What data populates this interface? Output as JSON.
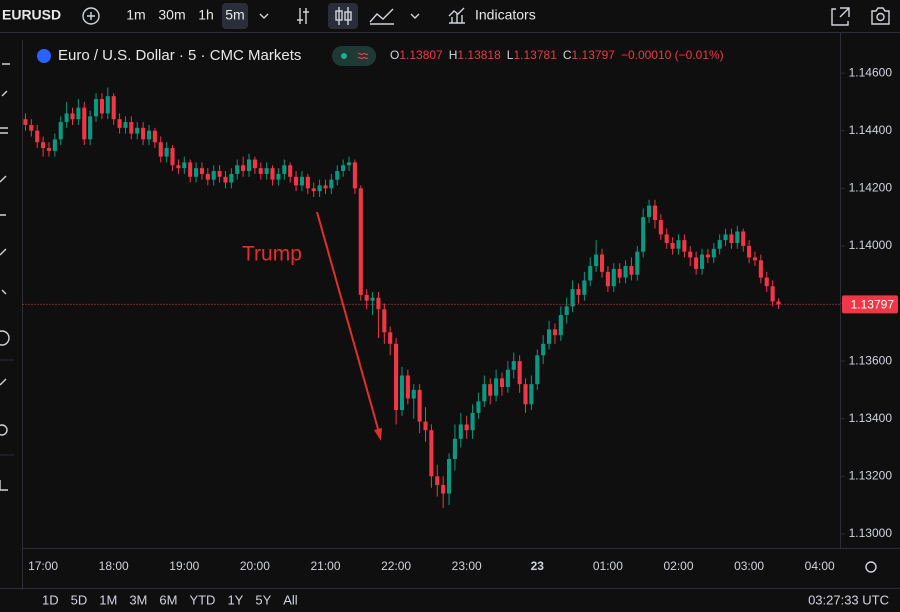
{
  "toolbar": {
    "symbol": "EURUSD",
    "intervals": [
      "1m",
      "30m",
      "1h",
      "5m"
    ],
    "indicators": "Indicators"
  },
  "chart_data": {
    "type": "candlestick",
    "title": "Euro / U.S. Dollar · 5 · CMC Markets",
    "ohlc_labels": [
      "O",
      "H",
      "L",
      "C"
    ],
    "change": "−0.00010 (−0.01%)",
    "annotation": "Trump",
    "up_color": "#089981",
    "down_color": "#f23645",
    "grid": false,
    "categories": [
      null,
      null,
      null,
      "17:00",
      null,
      null,
      null,
      null,
      null,
      null,
      null,
      null,
      null,
      null,
      null,
      "18:00",
      null,
      null,
      null,
      null,
      null,
      null,
      null,
      null,
      null,
      null,
      null,
      "19:00",
      null,
      null,
      null,
      null,
      null,
      null,
      null,
      null,
      null,
      null,
      null,
      "20:00",
      null,
      null,
      null,
      null,
      null,
      null,
      null,
      null,
      null,
      null,
      null,
      "21:00",
      null,
      null,
      null,
      null,
      null,
      null,
      null,
      null,
      null,
      null,
      null,
      "22:00",
      null,
      null,
      null,
      null,
      null,
      null,
      null,
      null,
      null,
      null,
      null,
      "23:00",
      null,
      null,
      null,
      null,
      null,
      null,
      null,
      null,
      null,
      null,
      null,
      "23",
      null,
      null,
      null,
      null,
      null,
      null,
      null,
      null,
      null,
      null,
      null,
      "01:00",
      null,
      null,
      null,
      null,
      null,
      null,
      null,
      null,
      null,
      null,
      null,
      "02:00",
      null,
      null,
      null,
      null,
      null,
      null,
      null,
      null,
      null,
      null,
      null,
      "03:00",
      null,
      null,
      null,
      null,
      null,
      null,
      null,
      null,
      null,
      null,
      null,
      "04:00",
      null,
      null
    ],
    "open": [
      1.1444,
      1.1442,
      1.144,
      1.1436,
      1.1434,
      1.1433,
      1.1437,
      1.1443,
      1.1446,
      1.1444,
      1.1448,
      1.1437,
      1.1445,
      1.1451,
      1.1446,
      1.1452,
      1.1444,
      1.1441,
      1.1443,
      1.1439,
      1.1441,
      1.1437,
      1.144,
      1.1436,
      1.1431,
      1.1434,
      1.1428,
      1.1427,
      1.1429,
      1.1424,
      1.1427,
      1.1425,
      1.1423,
      1.1426,
      1.1424,
      1.1422,
      1.1425,
      1.1428,
      1.1426,
      1.143,
      1.1427,
      1.1425,
      1.1427,
      1.1423,
      1.1425,
      1.1428,
      1.1424,
      1.1421,
      1.1424,
      1.142,
      1.1419,
      1.1421,
      1.142,
      1.1423,
      1.1426,
      1.1428,
      1.1429,
      1.142,
      1.1383,
      1.1381,
      1.1382,
      1.1378,
      1.137,
      1.1366,
      1.1343,
      1.1355,
      1.1347,
      1.135,
      1.1339,
      1.1336,
      1.132,
      1.1317,
      1.1314,
      1.1326,
      1.1333,
      1.1338,
      1.1336,
      1.1342,
      1.1346,
      1.1352,
      1.1348,
      1.1354,
      1.1351,
      1.1357,
      1.136,
      1.1352,
      1.1345,
      1.1352,
      1.1362,
      1.1366,
      1.1371,
      1.1369,
      1.1376,
      1.1379,
      1.1385,
      1.1383,
      1.1388,
      1.1393,
      1.1397,
      1.1391,
      1.1386,
      1.1392,
      1.1389,
      1.1393,
      1.139,
      1.1398,
      1.141,
      1.1414,
      1.1409,
      1.1404,
      1.1401,
      1.1399,
      1.1402,
      1.1398,
      1.1396,
      1.1392,
      1.1397,
      1.1396,
      1.1399,
      1.1402,
      1.1404,
      1.1401,
      1.1405,
      1.14,
      1.1396,
      1.1395,
      1.1389,
      1.1386,
      1.13807,
      null,
      null,
      null,
      null,
      null,
      null,
      null,
      null,
      null
    ],
    "high": [
      1.1446,
      1.1444,
      1.1442,
      1.1438,
      1.1436,
      1.1439,
      1.1445,
      1.145,
      1.1448,
      1.1451,
      1.145,
      1.1447,
      1.1453,
      1.1453,
      1.1455,
      1.1453,
      1.1446,
      1.1445,
      1.1445,
      1.1443,
      1.1443,
      1.1442,
      1.1441,
      1.1438,
      1.1436,
      1.1435,
      1.143,
      1.1431,
      1.143,
      1.1429,
      1.1429,
      1.1427,
      1.1428,
      1.1428,
      1.1426,
      1.1427,
      1.143,
      1.1431,
      1.1432,
      1.1431,
      1.1429,
      1.1429,
      1.1428,
      1.1427,
      1.143,
      1.1429,
      1.1426,
      1.1426,
      1.1425,
      1.1422,
      1.1423,
      1.1423,
      1.1425,
      1.1428,
      1.143,
      1.1431,
      1.143,
      1.1421,
      1.1385,
      1.1384,
      1.1384,
      1.138,
      1.1372,
      1.1368,
      1.1358,
      1.1357,
      1.1352,
      1.1352,
      1.1344,
      1.1338,
      1.1324,
      1.132,
      1.1328,
      1.1338,
      1.1342,
      1.1341,
      1.1345,
      1.1349,
      1.1355,
      1.1354,
      1.1357,
      1.1356,
      1.136,
      1.1363,
      1.1362,
      1.1354,
      1.1355,
      1.1364,
      1.1369,
      1.1374,
      1.1373,
      1.1379,
      1.1382,
      1.1388,
      1.1387,
      1.1391,
      1.1396,
      1.1402,
      1.1399,
      1.1393,
      1.1394,
      1.1394,
      1.1395,
      1.1396,
      1.14,
      1.1413,
      1.1416,
      1.1416,
      1.1411,
      1.1406,
      1.1403,
      1.1404,
      1.1404,
      1.14,
      1.1398,
      1.1399,
      1.1399,
      1.1401,
      1.1404,
      1.1406,
      1.1406,
      1.1407,
      1.1406,
      1.1402,
      1.1398,
      1.1397,
      1.1391,
      1.1388,
      1.13818,
      null,
      null,
      null,
      null,
      null,
      null,
      null,
      null,
      null
    ],
    "low": [
      1.144,
      1.1438,
      1.1434,
      1.1431,
      1.1431,
      1.1431,
      1.1435,
      1.1441,
      1.1442,
      1.1442,
      1.1435,
      1.1435,
      1.1443,
      1.1444,
      1.1444,
      1.1442,
      1.1439,
      1.1439,
      1.1437,
      1.1437,
      1.1435,
      1.1435,
      1.1434,
      1.1429,
      1.1429,
      1.1426,
      1.1425,
      1.1425,
      1.1422,
      1.1422,
      1.1423,
      1.1421,
      1.1421,
      1.1422,
      1.142,
      1.142,
      1.1423,
      1.1424,
      1.1424,
      1.1425,
      1.1423,
      1.1423,
      1.1421,
      1.1421,
      1.1423,
      1.1422,
      1.1419,
      1.1419,
      1.1418,
      1.1417,
      1.1417,
      1.1418,
      1.1418,
      1.1421,
      1.1424,
      1.1426,
      1.1418,
      1.1381,
      1.1378,
      1.1376,
      1.1368,
      1.1366,
      1.1362,
      1.1338,
      1.1341,
      1.1345,
      1.134,
      1.1335,
      1.1332,
      1.1316,
      1.1313,
      1.1309,
      1.131,
      1.1322,
      1.133,
      1.1333,
      1.1333,
      1.134,
      1.1344,
      1.1345,
      1.1346,
      1.1348,
      1.1349,
      1.1354,
      1.1349,
      1.1342,
      1.1343,
      1.135,
      1.1359,
      1.1364,
      1.1366,
      1.1367,
      1.1373,
      1.1377,
      1.138,
      1.1381,
      1.1386,
      1.1391,
      1.1389,
      1.1384,
      1.1384,
      1.1387,
      1.1387,
      1.1388,
      1.1388,
      1.1396,
      1.1408,
      1.1406,
      1.1402,
      1.1399,
      1.1397,
      1.1397,
      1.1396,
      1.1393,
      1.139,
      1.139,
      1.1394,
      1.1394,
      1.1397,
      1.14,
      1.1399,
      1.1399,
      1.1398,
      1.1394,
      1.1393,
      1.1387,
      1.1384,
      1.1379,
      1.13781,
      null,
      null,
      null,
      null,
      null,
      null,
      null,
      null,
      null
    ],
    "close": [
      1.1442,
      1.144,
      1.1436,
      1.1434,
      1.1433,
      1.1437,
      1.1443,
      1.1446,
      1.1444,
      1.1448,
      1.1437,
      1.1445,
      1.1451,
      1.1446,
      1.1452,
      1.1444,
      1.1441,
      1.1443,
      1.1439,
      1.1441,
      1.1437,
      1.144,
      1.1436,
      1.1431,
      1.1434,
      1.1428,
      1.1427,
      1.1429,
      1.1424,
      1.1427,
      1.1425,
      1.1423,
      1.1426,
      1.1424,
      1.1422,
      1.1425,
      1.1428,
      1.1426,
      1.143,
      1.1427,
      1.1425,
      1.1427,
      1.1423,
      1.1425,
      1.1428,
      1.1424,
      1.1421,
      1.1424,
      1.142,
      1.1419,
      1.1421,
      1.142,
      1.1423,
      1.1426,
      1.1428,
      1.1429,
      1.142,
      1.1383,
      1.1381,
      1.1382,
      1.1378,
      1.137,
      1.1366,
      1.1343,
      1.1355,
      1.1347,
      1.135,
      1.1339,
      1.1336,
      1.132,
      1.1317,
      1.1314,
      1.1326,
      1.1333,
      1.1338,
      1.1336,
      1.1342,
      1.1346,
      1.1352,
      1.1348,
      1.1354,
      1.1351,
      1.1357,
      1.136,
      1.1352,
      1.1345,
      1.1352,
      1.1362,
      1.1366,
      1.1371,
      1.1369,
      1.1376,
      1.1379,
      1.1385,
      1.1383,
      1.1388,
      1.1393,
      1.1397,
      1.1391,
      1.1386,
      1.1392,
      1.1389,
      1.1393,
      1.139,
      1.1398,
      1.141,
      1.1414,
      1.1409,
      1.1404,
      1.1401,
      1.1399,
      1.1402,
      1.1398,
      1.1396,
      1.1392,
      1.1397,
      1.1396,
      1.1399,
      1.1402,
      1.1404,
      1.1401,
      1.1405,
      1.14,
      1.1396,
      1.1395,
      1.1389,
      1.1386,
      1.13807,
      1.13797,
      null,
      null,
      null,
      null,
      null,
      null,
      null,
      null,
      null
    ],
    "ylim": [
      1.14715,
      1.12951
    ],
    "yticks": [
      {
        "value": 1.146,
        "label": "1.14600"
      },
      {
        "value": 1.144,
        "label": "1.14400"
      },
      {
        "value": 1.142,
        "label": "1.14200"
      },
      {
        "value": 1.14,
        "label": "1.14000"
      },
      {
        "value": 1.138,
        "label": "1.13800"
      },
      {
        "value": 1.136,
        "label": "1.13600"
      },
      {
        "value": 1.134,
        "label": "1.13400"
      },
      {
        "value": 1.132,
        "label": "1.13200"
      },
      {
        "value": 1.13,
        "label": "1.13000"
      }
    ]
  },
  "range_bar": {
    "ranges": [
      "1D",
      "5D",
      "1M",
      "3M",
      "6M",
      "YTD",
      "1Y",
      "5Y",
      "All"
    ],
    "clock": "03:27:33 UTC"
  }
}
